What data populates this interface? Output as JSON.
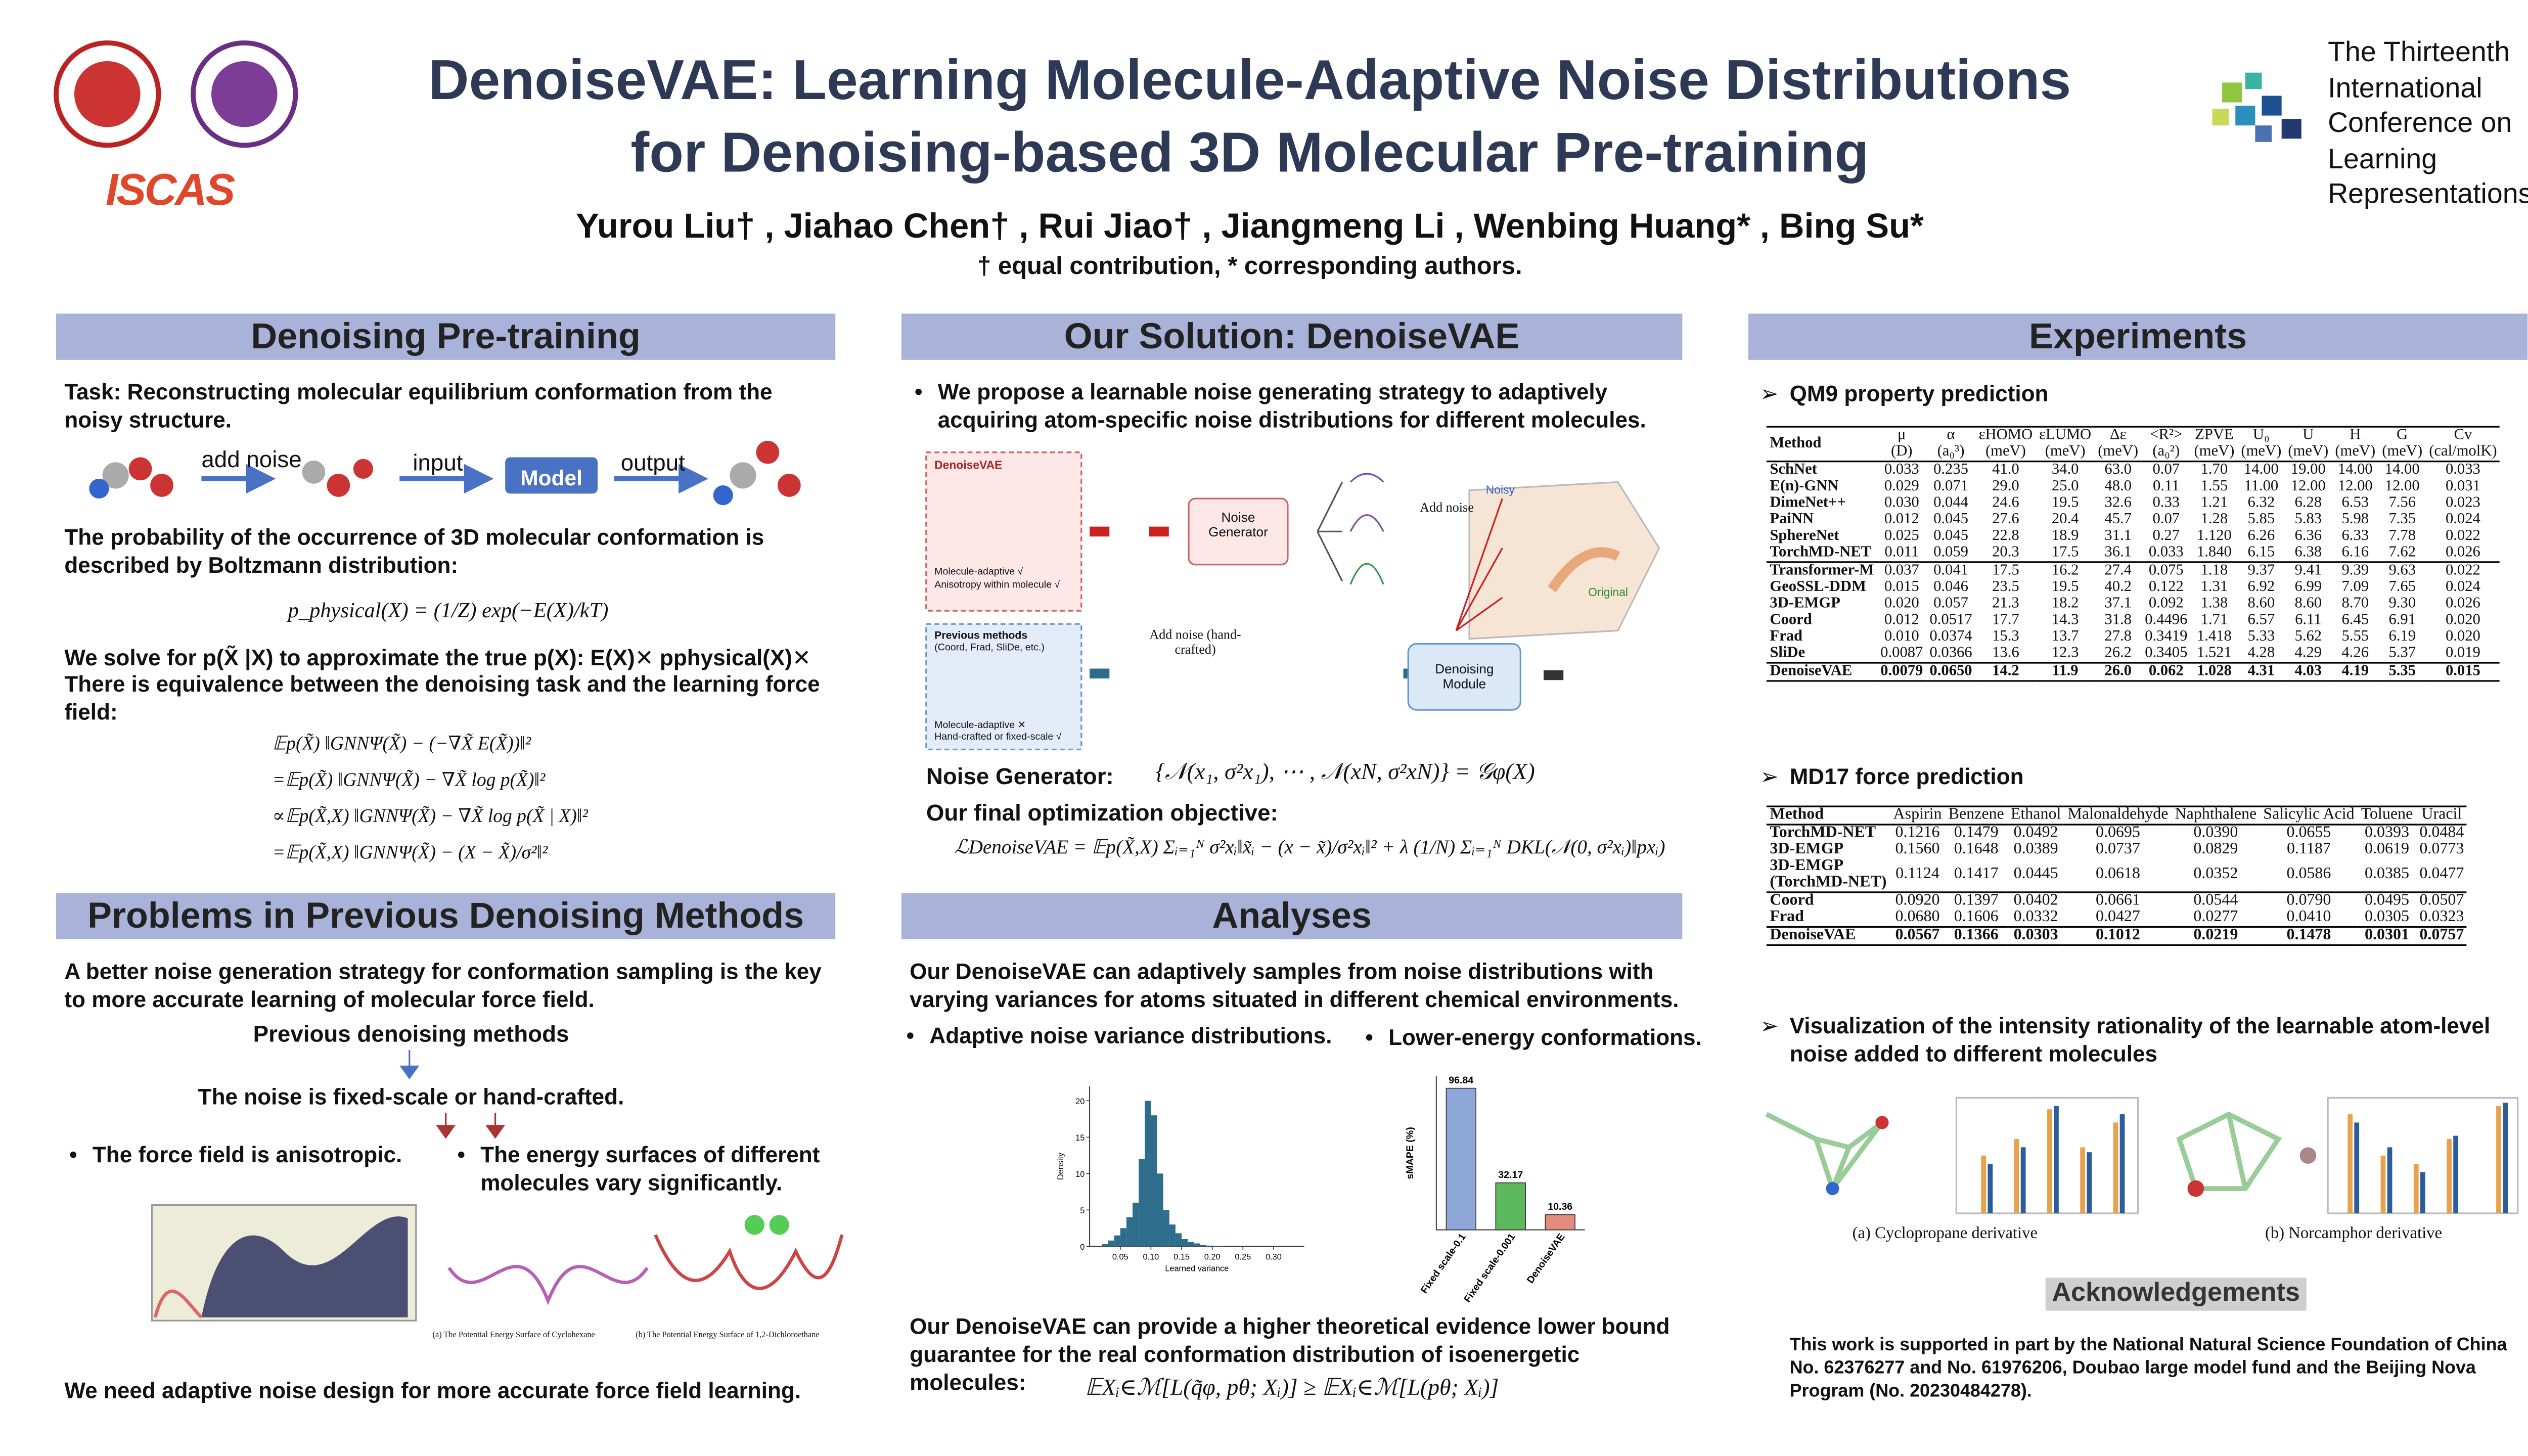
{
  "header": {
    "title_line1": "DenoiseVAE: Learning Molecule-Adaptive Noise Distributions",
    "title_line2": "for Denoising-based 3D Molecular Pre-training",
    "authors": "Yurou Liu† , Jiahao Chen† , Rui Jiao† , Jiangmeng Li , Wenbing Huang* , Bing Su*",
    "note": "† equal contribution, * corresponding authors.",
    "logo_text": "ISCAS",
    "conference": [
      "The Thirteenth",
      "International",
      "Conference on",
      "Learning",
      "Representations"
    ]
  },
  "pretraining": {
    "heading": "Denoising Pre-training",
    "task_label": "Task:",
    "task": "Reconstructing molecular equilibrium conformation from the noisy structure.",
    "pipeline": [
      "add noise",
      "input",
      "Model",
      "output"
    ],
    "text1": "The probability of the occurrence of 3D molecular conformation is described by Boltzmann distribution:",
    "formula": "p_physical(X) = (1/Z) exp(−E(X)/kT)",
    "text2": "We solve for p(X̃ |X) to approximate the true p(X): E(X)✕ pphysical(X)✕",
    "text3": "There is equivalence between the denoising task and the learning force field:",
    "equations": [
      "𝔼p(X̃) ‖GNNΨ(X̃) − (−∇X̃ E(X̃))‖²",
      "=𝔼p(X̃) ‖GNNΨ(X̃) − ∇X̃ log p(X̃)‖²",
      "∝𝔼p(X̃,X) ‖GNNΨ(X̃) − ∇X̃ log p(X̃ | X)‖²",
      "=𝔼p(X̃,X) ‖GNNΨ(X̃) − (X − X̃)/σ²‖²"
    ]
  },
  "problems": {
    "heading": "Problems in Previous Denoising Methods",
    "text": "A better noise generation strategy for conformation sampling is the key to more accurate learning of molecular force field.",
    "previous": "Previous denoising methods",
    "noise": "The noise is fixed-scale or hand-crafted.",
    "bullet1": "The force field is anisotropic.",
    "bullet2": "The energy surfaces of different molecules vary significantly.",
    "caption_a": "(a) The Potential Energy Surface of Cyclohexane",
    "caption_b": "(b) The Potential Energy Surface of 1,2-Dichloroethane",
    "conclusion": "We need adaptive noise design for more accurate force field learning."
  },
  "solution": {
    "heading": "Our Solution: DenoiseVAE",
    "bullet": "We propose a learnable noise generating strategy to adaptively acquiring atom-specific noise distributions for different molecules.",
    "diagram": {
      "box1_title": "DenoiseVAE",
      "box1_lines": [
        "Molecule-adaptive √",
        "Anisotropy within molecule √"
      ],
      "generator": "Noise Generator",
      "add_noise": "Add noise",
      "noisy": "Noisy",
      "original": "Original",
      "box2_title": "Previous methods",
      "box2_sub": "(Coord, Frad, SliDe, etc.)",
      "box2_lines": [
        "Molecule-adaptive ✕",
        "Hand-crafted or fixed-scale √"
      ],
      "add_noise2": "Add noise (hand-crafted)",
      "denoiser": "Denoising Module"
    },
    "generator_label": "Noise Generator:",
    "generator_formula": "{𝒩(x₁, σ²x₁), ⋯ , 𝒩(xN, σ²xN)} = 𝒢φ(X)",
    "objective_label": "Our final optimization objective:",
    "objective": "ℒDenoiseVAE = 𝔼p(X̃,X) Σᵢ₌₁ᴺ σ²xᵢ‖x̃ᵢ − (x − x̃)/σ²xᵢ‖² + λ (1/N) Σᵢ₌₁ᴺ DKL(𝒩(0, σ²xᵢ)‖pxᵢ)"
  },
  "analyses": {
    "heading": "Analyses",
    "text1": "Our DenoiseVAE can adaptively samples from noise distributions with varying variances for atoms situated in different chemical environments.",
    "bullet_a": "Adaptive noise variance distributions.",
    "bullet_b": "Lower-energy conformations.",
    "histogram": {
      "type": "histogram",
      "x_label": "Learned variance",
      "y_label": "Density",
      "bins": [
        0.02,
        0.03,
        0.04,
        0.05,
        0.06,
        0.07,
        0.08,
        0.09,
        0.1,
        0.11,
        0.12,
        0.13,
        0.14,
        0.15,
        0.16,
        0.17,
        0.18,
        0.19,
        0.2,
        0.21,
        0.22
      ],
      "values": [
        0.3,
        0.8,
        1.5,
        2.5,
        4,
        6,
        12,
        20,
        18,
        10,
        5,
        3,
        1.8,
        1,
        0.6,
        0.4,
        0.2,
        0.1,
        0.05,
        0.02
      ],
      "color": "#2f6d8c",
      "xlim": [
        0,
        0.35
      ],
      "ylim": [
        0,
        22
      ],
      "xticks": [
        {
          "value": 0.05,
          "label": "0.05"
        },
        {
          "value": 0.1,
          "label": "0.10"
        },
        {
          "value": 0.15,
          "label": "0.15"
        },
        {
          "value": 0.2,
          "label": "0.20"
        },
        {
          "value": 0.25,
          "label": "0.25"
        },
        {
          "value": 0.3,
          "label": "0.30"
        }
      ],
      "yticks": [
        0,
        5,
        10,
        15,
        20
      ]
    },
    "bar_chart": {
      "type": "bar",
      "y_label": "sMAPE (%)",
      "categories": [
        "Fixed scale-0.1",
        "Fixed scale-0.001",
        "DenoiseVAE"
      ],
      "values": [
        96.84,
        32.17,
        10.36
      ],
      "colors": [
        "#8fa7d8",
        "#5cb85c",
        "#e58b7e"
      ],
      "ylim": [
        0,
        105
      ]
    },
    "text2": "Our DenoiseVAE can provide a higher theoretical evidence lower bound guarantee for the real conformation distribution of isoenergetic molecules:",
    "bound": "𝔼Xᵢ∈ℳ[L(q̃φ, pθ; Xᵢ)] ≥ 𝔼Xᵢ∈ℳ[L(pθ; Xᵢ)]"
  },
  "experiments": {
    "heading": "Experiments",
    "qm9_title": "QM9 property prediction",
    "qm9": {
      "columns": [
        "Method",
        "μ\n(D)",
        "α\n(a₀³)",
        "εHOMO\n(meV)",
        "εLUMO\n(meV)",
        "Δε\n(meV)",
        "<R²>\n(a₀²)",
        "ZPVE\n(meV)",
        "U₀\n(meV)",
        "U\n(meV)",
        "H\n(meV)",
        "G\n(meV)",
        "Cv\n(cal/molK)"
      ],
      "groups": [
        [
          [
            "SchNet",
            "0.033",
            "0.235",
            "41.0",
            "34.0",
            "63.0",
            "0.07",
            "1.70",
            "14.00",
            "19.00",
            "14.00",
            "14.00",
            "0.033"
          ],
          [
            "E(n)-GNN",
            "0.029",
            "0.071",
            "29.0",
            "25.0",
            "48.0",
            "0.11",
            "1.55",
            "11.00",
            "12.00",
            "12.00",
            "12.00",
            "0.031"
          ],
          [
            "DimeNet++",
            "0.030",
            "0.044",
            "24.6",
            "19.5",
            "32.6",
            "0.33",
            "1.21",
            "6.32",
            "6.28",
            "6.53",
            "7.56",
            "0.023"
          ],
          [
            "PaiNN",
            "0.012",
            "0.045",
            "27.6",
            "20.4",
            "45.7",
            "0.07",
            "1.28",
            "5.85",
            "5.83",
            "5.98",
            "7.35",
            "0.024"
          ],
          [
            "SphereNet",
            "0.025",
            "0.045",
            "22.8",
            "18.9",
            "31.1",
            "0.27",
            "1.120",
            "6.26",
            "6.36",
            "6.33",
            "7.78",
            "0.022"
          ],
          [
            "TorchMD-NET",
            "0.011",
            "0.059",
            "20.3",
            "17.5",
            "36.1",
            "0.033",
            "1.840",
            "6.15",
            "6.38",
            "6.16",
            "7.62",
            "0.026"
          ]
        ],
        [
          [
            "Transformer-M",
            "0.037",
            "0.041",
            "17.5",
            "16.2",
            "27.4",
            "0.075",
            "1.18",
            "9.37",
            "9.41",
            "9.39",
            "9.63",
            "0.022"
          ],
          [
            "GeoSSL-DDM",
            "0.015",
            "0.046",
            "23.5",
            "19.5",
            "40.2",
            "0.122",
            "1.31",
            "6.92",
            "6.99",
            "7.09",
            "7.65",
            "0.024"
          ],
          [
            "3D-EMGP",
            "0.020",
            "0.057",
            "21.3",
            "18.2",
            "37.1",
            "0.092",
            "1.38",
            "8.60",
            "8.60",
            "8.70",
            "9.30",
            "0.026"
          ],
          [
            "Coord",
            "0.012",
            "0.0517",
            "17.7",
            "14.3",
            "31.8",
            "0.4496",
            "1.71",
            "6.57",
            "6.11",
            "6.45",
            "6.91",
            "0.020"
          ],
          [
            "Frad",
            "0.010",
            "0.0374",
            "15.3",
            "13.7",
            "27.8",
            "0.3419",
            "1.418",
            "5.33",
            "5.62",
            "5.55",
            "6.19",
            "0.020"
          ],
          [
            "SliDe",
            "0.0087",
            "0.0366",
            "13.6",
            "12.3",
            "26.2",
            "0.3405",
            "1.521",
            "4.28",
            "4.29",
            "4.26",
            "5.37",
            "0.019"
          ]
        ],
        [
          [
            "DenoiseVAE",
            "0.0079",
            "0.0650",
            "14.2",
            "11.9",
            "26.0",
            "0.062",
            "1.028",
            "4.31",
            "4.03",
            "4.19",
            "5.35",
            "0.015"
          ]
        ]
      ]
    },
    "md17_title": "MD17 force prediction",
    "md17": {
      "columns": [
        "Method",
        "Aspirin",
        "Benzene",
        "Ethanol",
        "Malonaldehyde",
        "Naphthalene",
        "Salicylic Acid",
        "Toluene",
        "Uracil"
      ],
      "groups": [
        [
          [
            "TorchMD-NET",
            "0.1216",
            "0.1479",
            "0.0492",
            "0.0695",
            "0.0390",
            "0.0655",
            "0.0393",
            "0.0484"
          ],
          [
            "3D-EMGP",
            "0.1560",
            "0.1648",
            "0.0389",
            "0.0737",
            "0.0829",
            "0.1187",
            "0.0619",
            "0.0773"
          ],
          [
            "3D-EMGP\n(TorchMD-NET)",
            "0.1124",
            "0.1417",
            "0.0445",
            "0.0618",
            "0.0352",
            "0.0586",
            "0.0385",
            "0.0477"
          ]
        ],
        [
          [
            "Coord",
            "0.0920",
            "0.1397",
            "0.0402",
            "0.0661",
            "0.0544",
            "0.0790",
            "0.0495",
            "0.0507"
          ],
          [
            "Frad",
            "0.0680",
            "0.1606",
            "0.0332",
            "0.0427",
            "0.0277",
            "0.0410",
            "0.0305",
            "0.0323"
          ]
        ],
        [
          [
            "DenoiseVAE",
            "0.0567",
            "0.1366",
            "0.0303",
            "0.1012",
            "0.0219",
            "0.1478",
            "0.0301",
            "0.0757"
          ]
        ]
      ]
    },
    "vis_title": "Visualization of the intensity rationality of the learnable atom-level noise added to different molecules",
    "caption_a": "(a) Cyclopropane derivative",
    "caption_b": "(b) Norcamphor derivative",
    "ack_heading": "Acknowledgements",
    "ack": "This work is supported in part by the National Natural Science Foundation of China No. 62376277 and No. 61976206, Doubao large model fund and the Beijing Nova Program (No. 20230484278)."
  }
}
